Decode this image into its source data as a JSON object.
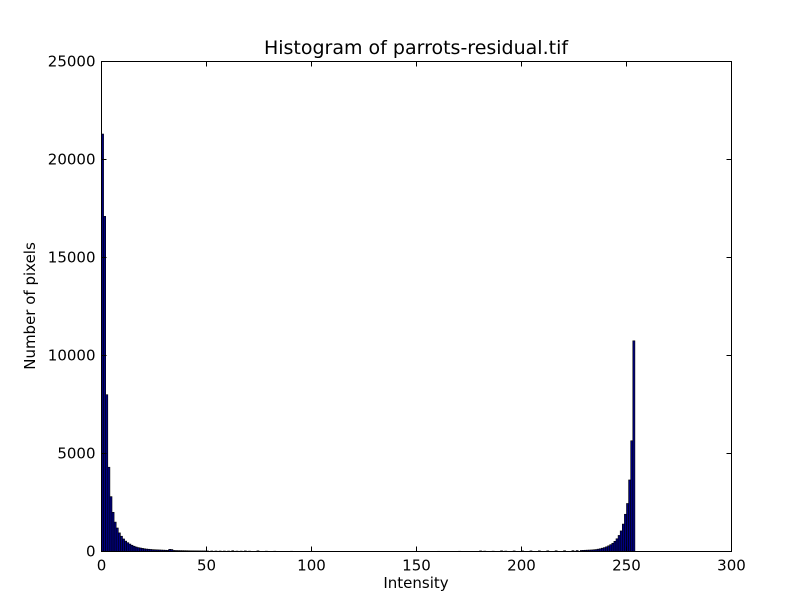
{
  "chart_data": {
    "type": "bar",
    "title": "Histogram of parrots-residual.tif",
    "xlabel": "Intensity",
    "ylabel": "Number of pixels",
    "xlim": [
      0,
      300
    ],
    "ylim": [
      0,
      25000
    ],
    "xticks": [
      0,
      50,
      100,
      150,
      200,
      250,
      300
    ],
    "yticks": [
      0,
      5000,
      10000,
      15000,
      20000,
      25000
    ],
    "grid": false,
    "bar_color": "#00007f",
    "bins": [
      {
        "x": 0,
        "y": 21300
      },
      {
        "x": 1,
        "y": 17100
      },
      {
        "x": 2,
        "y": 8000
      },
      {
        "x": 3,
        "y": 4300
      },
      {
        "x": 4,
        "y": 2800
      },
      {
        "x": 5,
        "y": 2000
      },
      {
        "x": 6,
        "y": 1500
      },
      {
        "x": 7,
        "y": 1200
      },
      {
        "x": 8,
        "y": 950
      },
      {
        "x": 9,
        "y": 780
      },
      {
        "x": 10,
        "y": 640
      },
      {
        "x": 11,
        "y": 530
      },
      {
        "x": 12,
        "y": 450
      },
      {
        "x": 13,
        "y": 380
      },
      {
        "x": 14,
        "y": 320
      },
      {
        "x": 15,
        "y": 270
      },
      {
        "x": 16,
        "y": 230
      },
      {
        "x": 17,
        "y": 200
      },
      {
        "x": 18,
        "y": 180
      },
      {
        "x": 19,
        "y": 160
      },
      {
        "x": 20,
        "y": 140
      },
      {
        "x": 21,
        "y": 125
      },
      {
        "x": 22,
        "y": 115
      },
      {
        "x": 23,
        "y": 105
      },
      {
        "x": 24,
        "y": 95
      },
      {
        "x": 25,
        "y": 90
      },
      {
        "x": 26,
        "y": 85
      },
      {
        "x": 27,
        "y": 80
      },
      {
        "x": 28,
        "y": 75
      },
      {
        "x": 29,
        "y": 70
      },
      {
        "x": 30,
        "y": 65
      },
      {
        "x": 31,
        "y": 60
      },
      {
        "x": 32,
        "y": 110
      },
      {
        "x": 33,
        "y": 100
      },
      {
        "x": 34,
        "y": 55
      },
      {
        "x": 35,
        "y": 50
      },
      {
        "x": 36,
        "y": 48
      },
      {
        "x": 37,
        "y": 46
      },
      {
        "x": 38,
        "y": 44
      },
      {
        "x": 39,
        "y": 42
      },
      {
        "x": 40,
        "y": 40
      },
      {
        "x": 41,
        "y": 38
      },
      {
        "x": 42,
        "y": 36
      },
      {
        "x": 43,
        "y": 35
      },
      {
        "x": 44,
        "y": 34
      },
      {
        "x": 45,
        "y": 33
      },
      {
        "x": 46,
        "y": 32
      },
      {
        "x": 47,
        "y": 31
      },
      {
        "x": 48,
        "y": 30
      },
      {
        "x": 49,
        "y": 29
      },
      {
        "x": 50,
        "y": 28
      },
      {
        "x": 52,
        "y": 27
      },
      {
        "x": 54,
        "y": 26
      },
      {
        "x": 56,
        "y": 25
      },
      {
        "x": 58,
        "y": 24
      },
      {
        "x": 60,
        "y": 23
      },
      {
        "x": 62,
        "y": 40
      },
      {
        "x": 64,
        "y": 22
      },
      {
        "x": 66,
        "y": 21
      },
      {
        "x": 68,
        "y": 30
      },
      {
        "x": 70,
        "y": 20
      },
      {
        "x": 74,
        "y": 35
      },
      {
        "x": 78,
        "y": 18
      },
      {
        "x": 82,
        "y": 16
      },
      {
        "x": 90,
        "y": 14
      },
      {
        "x": 100,
        "y": 12
      },
      {
        "x": 110,
        "y": 10
      },
      {
        "x": 120,
        "y": 10
      },
      {
        "x": 130,
        "y": 10
      },
      {
        "x": 140,
        "y": 10
      },
      {
        "x": 150,
        "y": 10
      },
      {
        "x": 160,
        "y": 12
      },
      {
        "x": 170,
        "y": 14
      },
      {
        "x": 180,
        "y": 30
      },
      {
        "x": 182,
        "y": 20
      },
      {
        "x": 186,
        "y": 18
      },
      {
        "x": 190,
        "y": 35
      },
      {
        "x": 192,
        "y": 22
      },
      {
        "x": 196,
        "y": 30
      },
      {
        "x": 200,
        "y": 30
      },
      {
        "x": 204,
        "y": 32
      },
      {
        "x": 208,
        "y": 34
      },
      {
        "x": 212,
        "y": 36
      },
      {
        "x": 216,
        "y": 38
      },
      {
        "x": 220,
        "y": 40
      },
      {
        "x": 224,
        "y": 45
      },
      {
        "x": 226,
        "y": 50
      },
      {
        "x": 228,
        "y": 55
      },
      {
        "x": 229,
        "y": 60
      },
      {
        "x": 230,
        "y": 65
      },
      {
        "x": 231,
        "y": 70
      },
      {
        "x": 232,
        "y": 75
      },
      {
        "x": 233,
        "y": 80
      },
      {
        "x": 234,
        "y": 90
      },
      {
        "x": 235,
        "y": 100
      },
      {
        "x": 236,
        "y": 120
      },
      {
        "x": 237,
        "y": 140
      },
      {
        "x": 238,
        "y": 170
      },
      {
        "x": 239,
        "y": 200
      },
      {
        "x": 240,
        "y": 240
      },
      {
        "x": 241,
        "y": 290
      },
      {
        "x": 242,
        "y": 350
      },
      {
        "x": 243,
        "y": 420
      },
      {
        "x": 244,
        "y": 520
      },
      {
        "x": 245,
        "y": 650
      },
      {
        "x": 246,
        "y": 820
      },
      {
        "x": 247,
        "y": 1050
      },
      {
        "x": 248,
        "y": 1400
      },
      {
        "x": 249,
        "y": 1900
      },
      {
        "x": 250,
        "y": 2450
      },
      {
        "x": 251,
        "y": 3650
      },
      {
        "x": 252,
        "y": 5650
      },
      {
        "x": 253,
        "y": 10750
      }
    ]
  }
}
